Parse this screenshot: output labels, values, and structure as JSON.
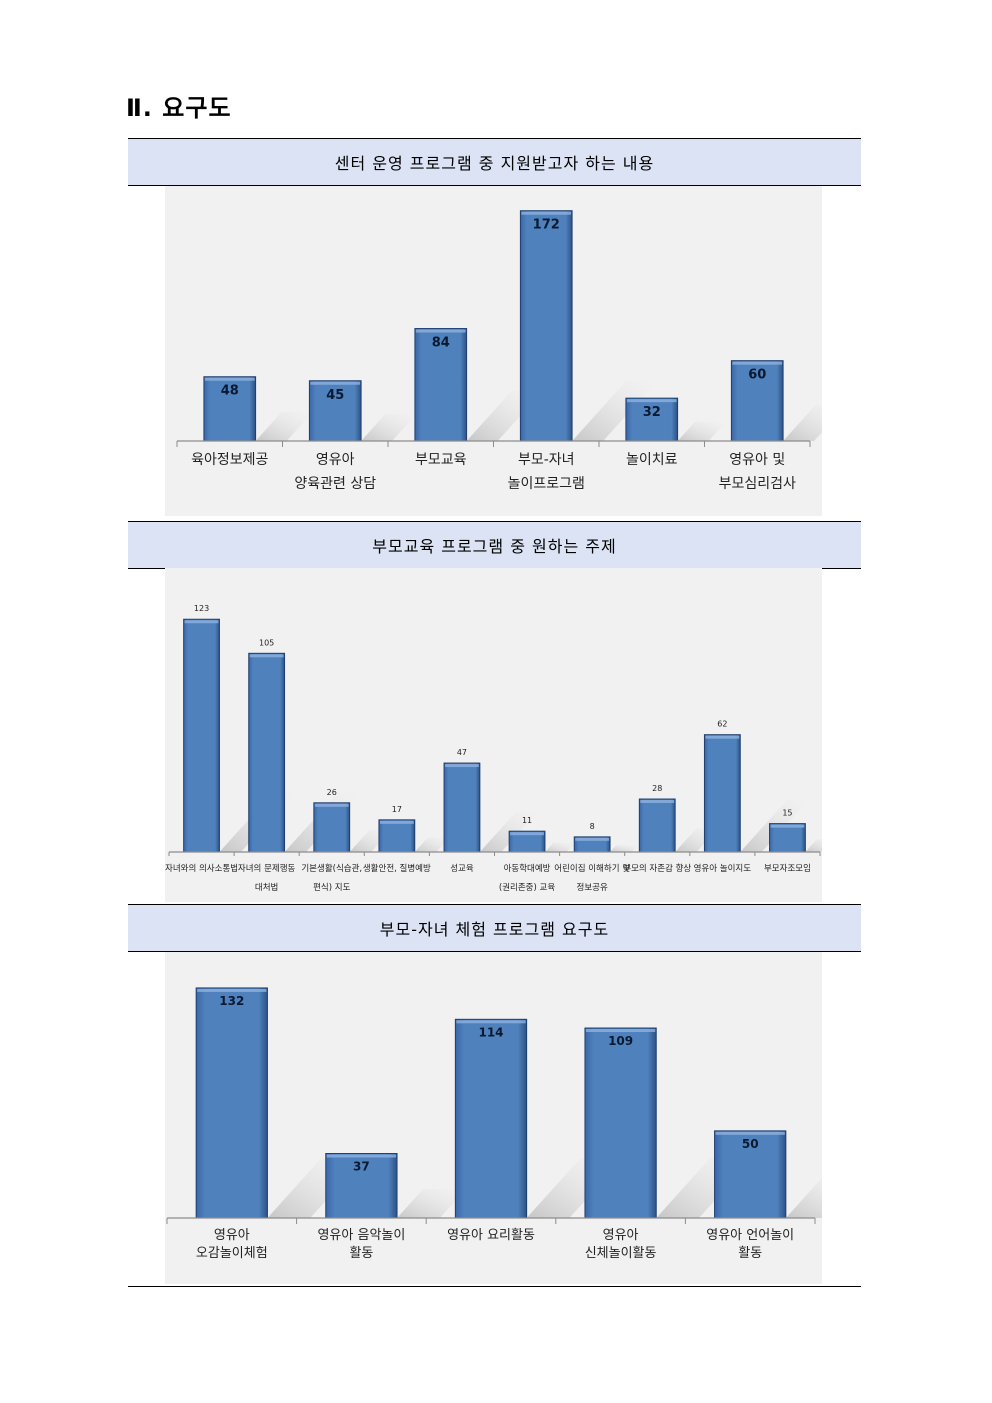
{
  "page": {
    "title": "Ⅱ. 요구도"
  },
  "sections": [
    {
      "header": "센터 운영 프로그램 중 지원받고자 하는 내용"
    },
    {
      "header": "부모교육 프로그램 중 원하는 주제"
    },
    {
      "header": "부모-자녀 체험 프로그램 요구도"
    }
  ],
  "chart_data": [
    {
      "type": "bar",
      "title": "센터 운영 프로그램 중 지원받고자 하는 내용",
      "categories": [
        [
          "육아정보제공"
        ],
        [
          "영유아",
          "양육관련 상담"
        ],
        [
          "부모교육"
        ],
        [
          "부모-자녀",
          "놀이프로그램"
        ],
        [
          "놀이치료"
        ],
        [
          "영유아 및",
          "부모심리검사"
        ]
      ],
      "values": [
        48,
        45,
        84,
        172,
        32,
        60
      ],
      "ylim": [
        0,
        180
      ],
      "grid": false,
      "bar_color": "#4f81bd"
    },
    {
      "type": "bar",
      "title": "부모교육 프로그램 중 원하는 주제",
      "categories": [
        [
          "자녀와의 의사소통법"
        ],
        [
          "자녀의 문제행동",
          "대처법"
        ],
        [
          "기본생활(식습관,",
          "편식) 지도"
        ],
        [
          "생활안전, 질병예방"
        ],
        [
          "성교육"
        ],
        [
          "아동학대예방",
          "(권리존중) 교육"
        ],
        [
          "어린이집 이해하기 및",
          "정보공유"
        ],
        [
          "부모의 자존감 향상"
        ],
        [
          "영유아 놀이지도"
        ],
        [
          "부모자조모임"
        ]
      ],
      "values": [
        123,
        105,
        26,
        17,
        47,
        11,
        8,
        28,
        62,
        15
      ],
      "ylim": [
        0,
        130
      ],
      "grid": false,
      "bar_color": "#4f81bd"
    },
    {
      "type": "bar",
      "title": "부모-자녀 체험 프로그램 요구도",
      "categories": [
        [
          "영유아",
          "오감놀이체험"
        ],
        [
          "영유아 음악놀이",
          "활동"
        ],
        [
          "영유아 요리활동"
        ],
        [
          "영유아",
          "신체놀이활동"
        ],
        [
          "영유아 언어놀이",
          "활동"
        ]
      ],
      "values": [
        132,
        37,
        114,
        109,
        50
      ],
      "ylim": [
        0,
        140
      ],
      "grid": false,
      "bar_color": "#4f81bd"
    }
  ]
}
